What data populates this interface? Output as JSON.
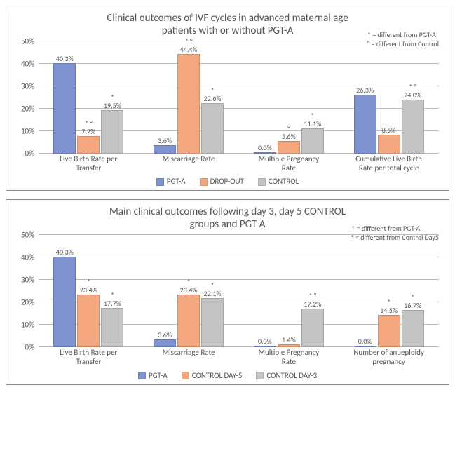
{
  "chart1": {
    "type": "bar",
    "title_line1": "Clinical outcomes of IVF cycles in advanced maternal age",
    "title_line2": "patients with or without PGT-A",
    "title_fontsize": 15,
    "legend_note1": "* = different from PGT-A",
    "legend_note2": "° = different from Control",
    "background_color": "#ffffff",
    "grid_color": "#bbbbbb",
    "ymax": 50,
    "ytick_step": 10,
    "yticks": [
      "0%",
      "10%",
      "20%",
      "30%",
      "40%",
      "50%"
    ],
    "categories": [
      "Live Birth Rate per\nTransfer",
      "Miscarriage Rate",
      "Multiple Pregnancy\nRate",
      "Cumulative Live Birth\nRate per total cycle"
    ],
    "series": [
      {
        "name": "PGT-A",
        "color": "#7e93cf"
      },
      {
        "name": "DROP-OUT",
        "color": "#f4a77f"
      },
      {
        "name": "CONTROL",
        "color": "#c3c3c3"
      }
    ],
    "groups": [
      {
        "bars": [
          {
            "value": 40.3,
            "label": "40.3%",
            "mark": ""
          },
          {
            "value": 7.7,
            "label": "7.7%",
            "mark": "* °"
          },
          {
            "value": 19.5,
            "label": "19.5%",
            "mark": "*"
          }
        ]
      },
      {
        "bars": [
          {
            "value": 3.6,
            "label": "3.6%",
            "mark": ""
          },
          {
            "value": 44.4,
            "label": "44.4%",
            "mark": "* °"
          },
          {
            "value": 22.6,
            "label": "22.6%",
            "mark": "*"
          }
        ]
      },
      {
        "bars": [
          {
            "value": 0.0,
            "label": "0.0%",
            "mark": ""
          },
          {
            "value": 5.6,
            "label": "5.6%",
            "mark": "°"
          },
          {
            "value": 11.1,
            "label": "11.1%",
            "mark": "*"
          }
        ]
      },
      {
        "bars": [
          {
            "value": 26.3,
            "label": "26.3%",
            "mark": ""
          },
          {
            "value": 8.5,
            "label": "8.5%",
            "mark": ""
          },
          {
            "value": 24.0,
            "label": "24.0%",
            "mark": "* °"
          }
        ]
      }
    ]
  },
  "chart2": {
    "type": "bar",
    "title_line1": "Main clinical outcomes following day 3, day 5 CONTROL",
    "title_line2": "groups and PGT-A",
    "title_fontsize": 15,
    "legend_note1": "* = different from PGT-A",
    "legend_note2": "° = different from Control Day5",
    "background_color": "#ffffff",
    "grid_color": "#bbbbbb",
    "ymax": 50,
    "ytick_step": 10,
    "yticks": [
      "0%",
      "10%",
      "20%",
      "30%",
      "40%",
      "50%"
    ],
    "categories": [
      "Live Birth Rate per\nTransfer",
      "Miscarriage Rate",
      "Multiple Pregnancy\nRate",
      "Number of anueploidy\npregnancy"
    ],
    "series": [
      {
        "name": "PGT-A",
        "color": "#7e93cf"
      },
      {
        "name": "CONTROL DAY-5",
        "color": "#f4a77f"
      },
      {
        "name": "CONTROL DAY-3",
        "color": "#c3c3c3"
      }
    ],
    "groups": [
      {
        "bars": [
          {
            "value": 40.3,
            "label": "40.3%",
            "mark": ""
          },
          {
            "value": 23.4,
            "label": "23.4%",
            "mark": "*"
          },
          {
            "value": 17.7,
            "label": "17.7%",
            "mark": "*"
          }
        ]
      },
      {
        "bars": [
          {
            "value": 3.6,
            "label": "3.6%",
            "mark": ""
          },
          {
            "value": 23.4,
            "label": "23.4%",
            "mark": "*"
          },
          {
            "value": 22.1,
            "label": "22.1%",
            "mark": "*"
          }
        ]
      },
      {
        "bars": [
          {
            "value": 0.0,
            "label": "0.0%",
            "mark": ""
          },
          {
            "value": 1.4,
            "label": "1.4%",
            "mark": ""
          },
          {
            "value": 17.2,
            "label": "17.2%",
            "mark": "* °"
          }
        ]
      },
      {
        "bars": [
          {
            "value": 0.0,
            "label": "0.0%",
            "mark": ""
          },
          {
            "value": 14.5,
            "label": "14.5%",
            "mark": "*"
          },
          {
            "value": 16.7,
            "label": "16.7%",
            "mark": "*"
          }
        ]
      }
    ]
  }
}
